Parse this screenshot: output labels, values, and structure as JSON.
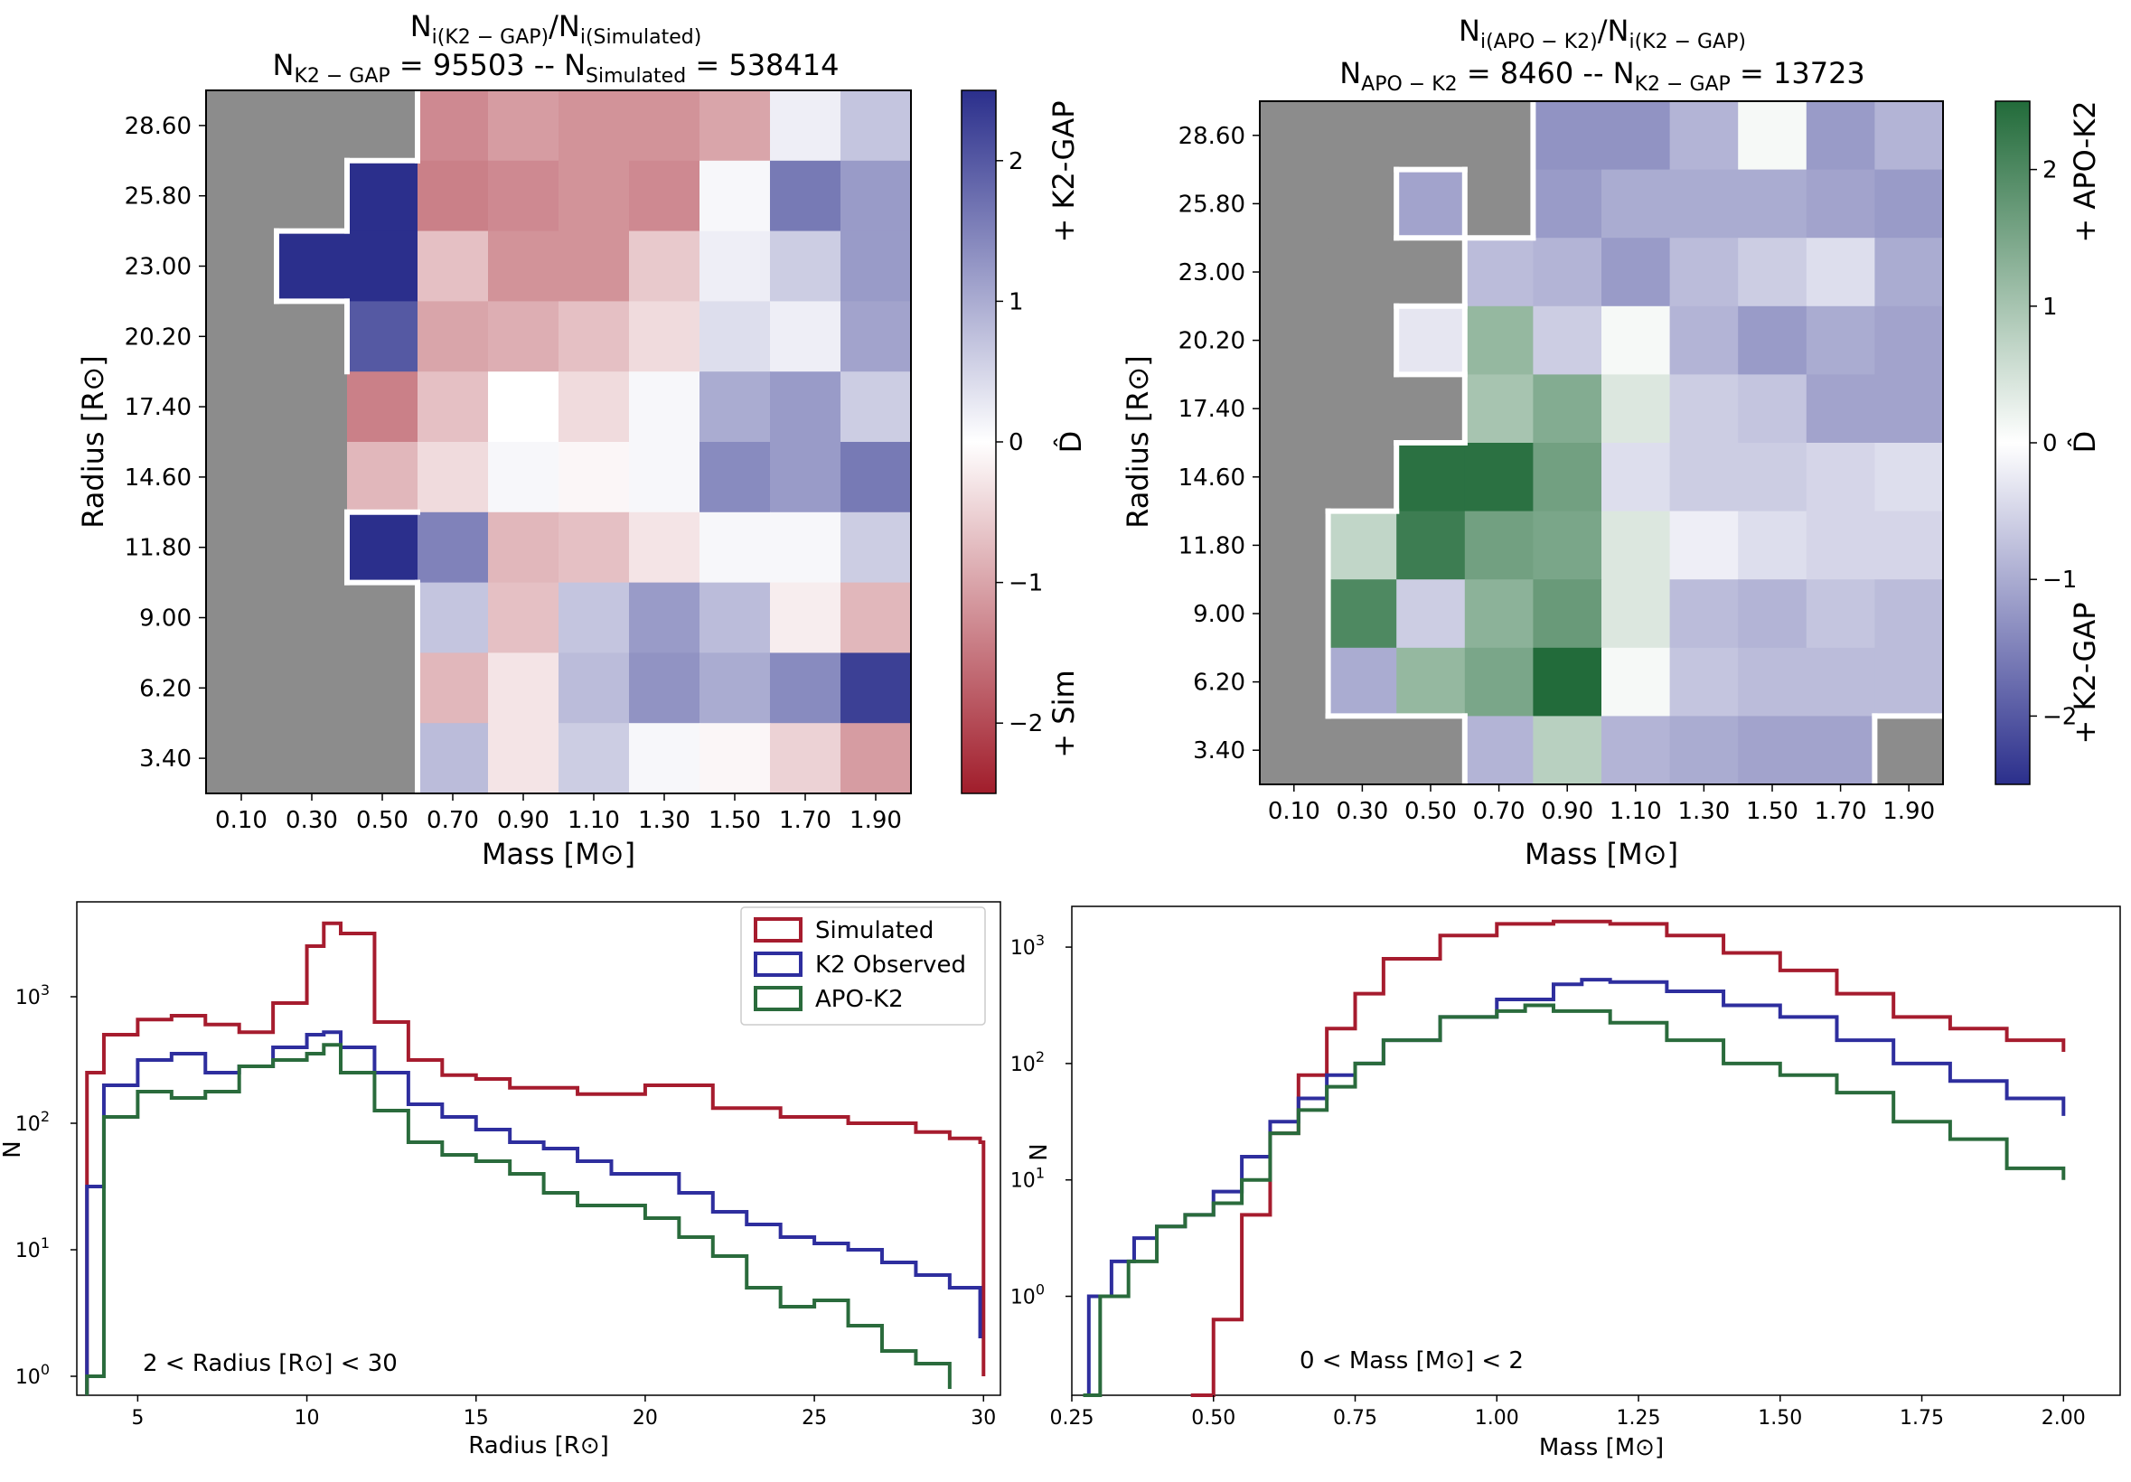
{
  "colors": {
    "simulated": "#a61c2e",
    "k2": "#2e2e9e",
    "apo": "#2a6b3c",
    "grey": "#8c8c8c",
    "red_end": "#a11d2b",
    "blue_end": "#2b2f8c",
    "green_end": "#226b3a"
  },
  "chart_data": [
    {
      "type": "heatmap",
      "id": "h1",
      "title_line1": {
        "a": "N",
        "a_sub": "i(K2 − GAP)",
        "sep": "/",
        "b": "N",
        "b_sub": "i(Simulated)"
      },
      "title_line2": {
        "a": "N",
        "a_sub": "K2 − GAP",
        "a_val": " = 95503 -- ",
        "b": "N",
        "b_sub": "Simulated",
        "b_val": " = 538414"
      },
      "xlabel": "Mass [M⊙]",
      "ylabel": "Radius [R⊙]",
      "x_ticks": [
        "0.10",
        "0.30",
        "0.50",
        "0.70",
        "0.90",
        "1.10",
        "1.30",
        "1.50",
        "1.70",
        "1.90"
      ],
      "y_ticks_top_to_bottom": [
        "28.60",
        "25.80",
        "23.00",
        "20.20",
        "17.40",
        "14.60",
        "11.80",
        "9.00",
        "6.20",
        "3.40"
      ],
      "vrange": [
        -2.5,
        2.5
      ],
      "colorbar": {
        "ticks": [
          2,
          1,
          0,
          -1,
          -2
        ],
        "tick_labels": [
          "2",
          "1",
          "0",
          "−1",
          "−2"
        ],
        "label": "D̂",
        "top_label": "+ K2-GAP",
        "bottom_label": "+ Sim",
        "negative": "red",
        "positive": "blue"
      },
      "grey_cells_note": "null = grey (no data)",
      "values_rows_top_to_bottom": [
        [
          null,
          null,
          null,
          -1.3,
          -1.1,
          -1.2,
          -1.2,
          -1.0,
          0.2,
          0.7
        ],
        [
          null,
          null,
          2.5,
          -1.4,
          -1.3,
          -1.2,
          -1.3,
          0.1,
          1.6,
          1.2
        ],
        [
          null,
          2.5,
          2.5,
          -0.7,
          -1.2,
          -1.2,
          -0.6,
          0.2,
          0.6,
          1.2
        ],
        [
          null,
          null,
          2.0,
          -1.0,
          -0.9,
          -0.7,
          -0.4,
          0.4,
          0.2,
          1.1
        ],
        [
          null,
          null,
          -1.4,
          -0.7,
          0.0,
          -0.4,
          0.1,
          1.0,
          1.2,
          0.6
        ],
        [
          null,
          null,
          -0.8,
          -0.4,
          0.1,
          -0.1,
          0.1,
          1.4,
          1.2,
          1.6
        ],
        [
          null,
          null,
          2.5,
          1.5,
          -0.8,
          -0.7,
          -0.3,
          0.1,
          0.1,
          0.6
        ],
        [
          null,
          null,
          null,
          0.7,
          -0.7,
          0.7,
          1.2,
          0.8,
          -0.2,
          -0.8
        ],
        [
          null,
          null,
          null,
          -0.8,
          -0.3,
          0.8,
          1.3,
          1.0,
          1.4,
          2.3
        ],
        [
          null,
          null,
          null,
          0.8,
          -0.3,
          0.6,
          0.1,
          -0.1,
          -0.5,
          -1.1
        ]
      ]
    },
    {
      "type": "heatmap",
      "id": "h2",
      "title_line1": {
        "a": "N",
        "a_sub": "i(APO − K2)",
        "sep": "/",
        "b": "N",
        "b_sub": "i(K2 − GAP)"
      },
      "title_line2": {
        "a": "N",
        "a_sub": "APO − K2",
        "a_val": " = 8460 -- ",
        "b": "N",
        "b_sub": "K2 − GAP",
        "b_val": " = 13723"
      },
      "xlabel": "Mass [M⊙]",
      "ylabel": "Radius [R⊙]",
      "x_ticks": [
        "0.10",
        "0.30",
        "0.50",
        "0.70",
        "0.90",
        "1.10",
        "1.30",
        "1.50",
        "1.70",
        "1.90"
      ],
      "y_ticks_top_to_bottom": [
        "28.60",
        "25.80",
        "23.00",
        "20.20",
        "17.40",
        "14.60",
        "11.80",
        "9.00",
        "6.20",
        "3.40"
      ],
      "vrange": [
        -2.5,
        2.5
      ],
      "colorbar": {
        "ticks": [
          2,
          1,
          0,
          -1,
          -2
        ],
        "tick_labels": [
          "2",
          "1",
          "0",
          "−1",
          "−2"
        ],
        "label": "D̂",
        "top_label": "+ APO-K2",
        "bottom_label": "+ K2-GAP",
        "negative": "blue",
        "positive": "green"
      },
      "values_rows_top_to_bottom": [
        [
          null,
          null,
          null,
          null,
          -1.3,
          -1.3,
          -0.9,
          0.1,
          -1.2,
          -0.9
        ],
        [
          null,
          null,
          -1.1,
          null,
          -1.2,
          -1.0,
          -1.0,
          -1.0,
          -1.1,
          -1.2
        ],
        [
          null,
          null,
          null,
          -0.8,
          -0.9,
          -1.2,
          -0.8,
          -0.6,
          -0.4,
          -1.0
        ],
        [
          null,
          null,
          -0.3,
          1.2,
          -0.6,
          0.1,
          -0.9,
          -1.2,
          -1.0,
          -1.1
        ],
        [
          null,
          null,
          null,
          1.0,
          1.4,
          0.4,
          -0.6,
          -0.7,
          -1.1,
          -1.1
        ],
        [
          null,
          null,
          2.4,
          2.4,
          1.6,
          -0.4,
          -0.6,
          -0.6,
          -0.5,
          -0.4
        ],
        [
          null,
          0.7,
          2.2,
          1.6,
          1.5,
          0.4,
          -0.2,
          -0.4,
          -0.5,
          -0.5
        ],
        [
          null,
          2.0,
          -0.6,
          1.3,
          1.7,
          0.4,
          -0.8,
          -0.9,
          -0.7,
          -0.8
        ],
        [
          null,
          -1.0,
          1.2,
          1.5,
          2.5,
          0.1,
          -0.7,
          -0.8,
          -0.8,
          -0.8
        ],
        [
          null,
          null,
          null,
          -0.9,
          0.8,
          -0.9,
          -1.0,
          -1.1,
          -1.1,
          null
        ]
      ],
      "white_outline_boxes": [
        [
          2,
          1
        ],
        [
          2,
          3
        ],
        [
          4,
          3
        ]
      ]
    },
    {
      "type": "line",
      "id": "rad",
      "step": true,
      "log_y": true,
      "xlabel": "Radius [R⊙]",
      "ylabel": "N",
      "xlim": [
        3.2,
        30.5
      ],
      "ylim_log10": [
        -0.15,
        3.75
      ],
      "x_ticks": [
        5,
        10,
        15,
        20,
        25,
        30
      ],
      "y_ticks": [
        {
          "pow": 0,
          "label": "10",
          "sup": "0"
        },
        {
          "pow": 1,
          "label": "10",
          "sup": "1"
        },
        {
          "pow": 2,
          "label": "10",
          "sup": "2"
        },
        {
          "pow": 3,
          "label": "10",
          "sup": "3"
        }
      ],
      "annotation": "2 < Radius [R⊙] < 30",
      "legend": [
        "Simulated",
        "K2 Observed",
        "APO-K2"
      ],
      "series": [
        {
          "name": "Simulated",
          "x": [
            3.5,
            4,
            5,
            6,
            7,
            8,
            9,
            10,
            10.5,
            11,
            12,
            13,
            14,
            15,
            16,
            18,
            20,
            21,
            22,
            24,
            26,
            28,
            29,
            29.9,
            30
          ],
          "log10": [
            2.4,
            2.7,
            2.82,
            2.85,
            2.78,
            2.72,
            2.95,
            3.4,
            3.58,
            3.5,
            2.8,
            2.5,
            2.38,
            2.35,
            2.28,
            2.23,
            2.3,
            2.3,
            2.12,
            2.05,
            2.0,
            1.93,
            1.88,
            1.85,
            0.0
          ]
        },
        {
          "name": "K2 Observed",
          "x": [
            3.5,
            4,
            5,
            6,
            7,
            8,
            9,
            10,
            10.5,
            11,
            12,
            13,
            14,
            15,
            16,
            17,
            18,
            19,
            20,
            21,
            22,
            23,
            24,
            25,
            26,
            27,
            28,
            29,
            29.9
          ],
          "log10": [
            1.5,
            2.3,
            2.5,
            2.55,
            2.4,
            2.45,
            2.6,
            2.7,
            2.72,
            2.6,
            2.4,
            2.15,
            2.05,
            1.95,
            1.85,
            1.8,
            1.7,
            1.6,
            1.6,
            1.45,
            1.3,
            1.2,
            1.1,
            1.05,
            1.0,
            0.9,
            0.8,
            0.7,
            0.3
          ]
        },
        {
          "name": "APO-K2",
          "x": [
            3.5,
            4,
            5,
            6,
            7,
            8,
            9,
            10,
            10.5,
            11,
            12,
            13,
            14,
            15,
            16,
            17,
            18,
            19,
            20,
            21,
            22,
            23,
            24,
            25,
            26,
            27,
            28,
            29
          ],
          "log10": [
            0.0,
            2.05,
            2.25,
            2.2,
            2.25,
            2.45,
            2.5,
            2.55,
            2.62,
            2.4,
            2.1,
            1.85,
            1.75,
            1.7,
            1.6,
            1.45,
            1.35,
            1.35,
            1.25,
            1.1,
            0.95,
            0.7,
            0.55,
            0.6,
            0.4,
            0.2,
            0.1,
            -0.1
          ]
        }
      ]
    },
    {
      "type": "line",
      "id": "mass",
      "step": true,
      "log_y": true,
      "xlabel": "Mass [M⊙]",
      "ylabel": "N",
      "xlim": [
        0.25,
        2.1
      ],
      "ylim_log10": [
        -0.85,
        3.35
      ],
      "x_ticks": [
        0.25,
        0.5,
        0.75,
        1.0,
        1.25,
        1.5,
        1.75,
        2.0
      ],
      "x_tick_labels": [
        "0.25",
        "0.50",
        "0.75",
        "1.00",
        "1.25",
        "1.50",
        "1.75",
        "2.00"
      ],
      "y_ticks": [
        {
          "pow": 0,
          "label": "10",
          "sup": "0"
        },
        {
          "pow": 1,
          "label": "10",
          "sup": "1"
        },
        {
          "pow": 2,
          "label": "10",
          "sup": "2"
        },
        {
          "pow": 3,
          "label": "10",
          "sup": "3"
        }
      ],
      "annotation": "0 < Mass [M⊙] < 2",
      "series": [
        {
          "name": "Simulated",
          "x": [
            0.46,
            0.5,
            0.55,
            0.6,
            0.65,
            0.7,
            0.75,
            0.8,
            0.9,
            1.0,
            1.1,
            1.2,
            1.3,
            1.4,
            1.5,
            1.6,
            1.7,
            1.8,
            1.9,
            2.0
          ],
          "log10": [
            -0.85,
            -0.2,
            0.7,
            1.4,
            1.9,
            2.3,
            2.6,
            2.9,
            3.1,
            3.2,
            3.22,
            3.2,
            3.1,
            2.95,
            2.8,
            2.6,
            2.4,
            2.3,
            2.2,
            2.1
          ]
        },
        {
          "name": "K2 Observed",
          "x": [
            0.28,
            0.32,
            0.36,
            0.4,
            0.45,
            0.5,
            0.55,
            0.6,
            0.65,
            0.7,
            0.75,
            0.8,
            0.9,
            1.0,
            1.1,
            1.15,
            1.2,
            1.3,
            1.4,
            1.5,
            1.6,
            1.7,
            1.8,
            1.9,
            2.0
          ],
          "log10": [
            0.0,
            0.3,
            0.5,
            0.6,
            0.7,
            0.9,
            1.2,
            1.5,
            1.7,
            1.9,
            2.0,
            2.2,
            2.4,
            2.55,
            2.68,
            2.72,
            2.7,
            2.62,
            2.5,
            2.4,
            2.2,
            2.0,
            1.85,
            1.7,
            1.55
          ]
        },
        {
          "name": "APO-K2",
          "x": [
            0.27,
            0.3,
            0.35,
            0.4,
            0.45,
            0.5,
            0.55,
            0.6,
            0.65,
            0.7,
            0.75,
            0.8,
            0.9,
            1.0,
            1.05,
            1.1,
            1.2,
            1.3,
            1.4,
            1.5,
            1.6,
            1.7,
            1.8,
            1.9,
            2.0
          ],
          "log10": [
            -0.85,
            0.0,
            0.3,
            0.6,
            0.7,
            0.8,
            1.0,
            1.4,
            1.6,
            1.8,
            2.0,
            2.2,
            2.4,
            2.45,
            2.5,
            2.45,
            2.35,
            2.2,
            2.0,
            1.9,
            1.75,
            1.5,
            1.35,
            1.1,
            1.0
          ]
        }
      ]
    }
  ]
}
